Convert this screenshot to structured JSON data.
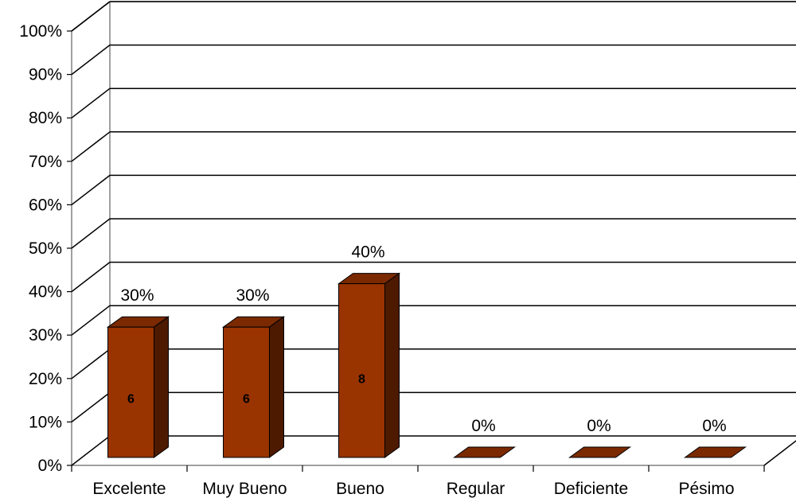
{
  "chart_data": {
    "type": "bar",
    "categories": [
      "Excelente",
      "Muy Bueno",
      "Bueno",
      "Regular",
      "Deficiente",
      "Pésimo"
    ],
    "values": [
      30,
      30,
      40,
      0,
      0,
      0
    ],
    "value_labels": [
      "30%",
      "30%",
      "40%",
      "0%",
      "0%",
      "0%"
    ],
    "counts": [
      6,
      6,
      8,
      null,
      null,
      null
    ],
    "count_labels": [
      "6",
      "6",
      "8",
      "",
      "",
      ""
    ],
    "y_ticks": [
      "0%",
      "10%",
      "20%",
      "30%",
      "40%",
      "50%",
      "60%",
      "70%",
      "80%",
      "90%",
      "100%"
    ],
    "ylim": [
      0,
      100
    ],
    "grid": true,
    "style": "3d-column",
    "colors": {
      "front": "#993300",
      "top": "#7a2900",
      "side": "#4d1a00",
      "outline": "#000000"
    }
  }
}
